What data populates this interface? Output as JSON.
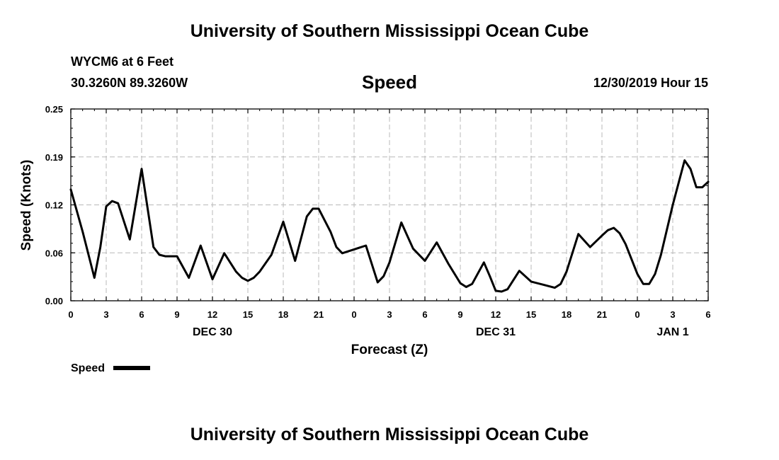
{
  "header": {
    "title": "University of Southern Mississippi Ocean Cube",
    "station": "WYCM6 at 6 Feet",
    "coordinates": "30.3260N 89.3260W",
    "chart_title": "Speed",
    "timestamp": "12/30/2019 Hour 15"
  },
  "footer": {
    "title": "University of Southern Mississippi Ocean Cube"
  },
  "chart_data": {
    "type": "line",
    "title": "Speed",
    "xlabel": "Forecast (Z)",
    "ylabel": "Speed (Knots)",
    "ylim": [
      0,
      0.25
    ],
    "y_ticks": [
      "0.00",
      "0.06",
      "0.12",
      "0.19",
      "0.25"
    ],
    "xlim": [
      0,
      54
    ],
    "x_ticks": [
      {
        "hour": 0,
        "label": "0"
      },
      {
        "hour": 3,
        "label": "3"
      },
      {
        "hour": 6,
        "label": "6"
      },
      {
        "hour": 9,
        "label": "9"
      },
      {
        "hour": 12,
        "label": "12"
      },
      {
        "hour": 15,
        "label": "15"
      },
      {
        "hour": 18,
        "label": "18"
      },
      {
        "hour": 21,
        "label": "21"
      },
      {
        "hour": 24,
        "label": "0"
      },
      {
        "hour": 27,
        "label": "3"
      },
      {
        "hour": 30,
        "label": "6"
      },
      {
        "hour": 33,
        "label": "9"
      },
      {
        "hour": 36,
        "label": "12"
      },
      {
        "hour": 39,
        "label": "15"
      },
      {
        "hour": 42,
        "label": "18"
      },
      {
        "hour": 45,
        "label": "21"
      },
      {
        "hour": 48,
        "label": "0"
      },
      {
        "hour": 51,
        "label": "3"
      },
      {
        "hour": 54,
        "label": "6"
      }
    ],
    "day_labels": [
      {
        "hour": 12,
        "label": "DEC 30"
      },
      {
        "hour": 36,
        "label": "DEC 31"
      },
      {
        "hour": 51,
        "label": "JAN 1"
      }
    ],
    "grid": true,
    "legend": {
      "position": "bottom-left",
      "entries": [
        "Speed"
      ]
    },
    "series": [
      {
        "name": "Speed",
        "color": "#000000",
        "x": [
          0,
          1,
          2,
          2.5,
          3,
          3.5,
          4,
          5,
          6,
          7,
          7.5,
          8,
          9,
          10,
          11,
          12,
          13,
          14,
          14.5,
          15,
          15.5,
          16,
          17,
          18,
          19,
          20,
          20.5,
          21,
          22,
          22.5,
          23,
          24,
          25,
          26,
          26.5,
          27,
          28,
          28.5,
          29,
          30,
          31,
          32,
          33,
          33.5,
          34,
          35,
          35.5,
          36,
          36.5,
          37,
          38,
          39,
          40,
          41,
          41.5,
          42,
          43,
          44,
          45,
          45.5,
          46,
          46.5,
          47,
          48,
          48.5,
          49,
          49.5,
          50,
          51,
          52,
          52.5,
          53,
          53.5,
          54
        ],
        "y": [
          0.145,
          0.09,
          0.03,
          0.07,
          0.123,
          0.13,
          0.127,
          0.08,
          0.172,
          0.07,
          0.06,
          0.058,
          0.058,
          0.03,
          0.072,
          0.028,
          0.062,
          0.038,
          0.03,
          0.026,
          0.03,
          0.038,
          0.06,
          0.103,
          0.052,
          0.11,
          0.12,
          0.12,
          0.09,
          0.07,
          0.062,
          0.067,
          0.072,
          0.024,
          0.032,
          0.05,
          0.102,
          0.085,
          0.068,
          0.052,
          0.076,
          0.048,
          0.023,
          0.018,
          0.022,
          0.05,
          0.032,
          0.013,
          0.012,
          0.015,
          0.039,
          0.025,
          0.021,
          0.017,
          0.022,
          0.038,
          0.087,
          0.07,
          0.085,
          0.092,
          0.095,
          0.088,
          0.074,
          0.035,
          0.022,
          0.022,
          0.035,
          0.06,
          0.125,
          0.183,
          0.172,
          0.148,
          0.148,
          0.155
        ]
      }
    ]
  }
}
